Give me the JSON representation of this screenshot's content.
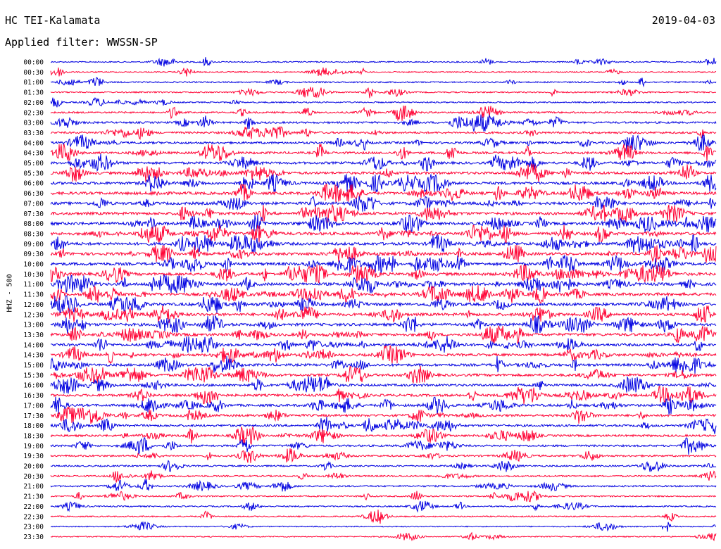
{
  "header": {
    "station": "HC TEI-Kalamata",
    "filter": "Applied filter: WWSSN-SP",
    "date": "2019-04-03",
    "channel_label": "HHZ - 500"
  },
  "colors": {
    "even_row": "#0000e0",
    "odd_row": "#ff0033",
    "text": "#000000"
  },
  "chart_data": {
    "type": "line",
    "title": "HC TEI-Kalamata",
    "subtitle": "Applied filter: WWSSN-SP",
    "ylabel": "HHZ - 500",
    "row_labels": [
      "00:00",
      "00:30",
      "01:00",
      "01:30",
      "02:00",
      "02:30",
      "03:00",
      "03:30",
      "04:00",
      "04:30",
      "05:00",
      "05:30",
      "06:00",
      "06:30",
      "07:00",
      "07:30",
      "08:00",
      "08:30",
      "09:00",
      "09:30",
      "10:00",
      "10:30",
      "11:00",
      "11:30",
      "12:00",
      "12:30",
      "13:00",
      "13:30",
      "14:00",
      "14:30",
      "15:00",
      "15:30",
      "16:00",
      "16:30",
      "17:00",
      "17:30",
      "18:00",
      "18:30",
      "19:00",
      "19:30",
      "20:00",
      "20:30",
      "21:00",
      "21:30",
      "22:00",
      "22:30",
      "23:00",
      "23:30"
    ],
    "row_minutes": 30,
    "activity_level": [
      0.15,
      0.15,
      0.2,
      0.2,
      0.2,
      0.35,
      0.45,
      0.5,
      0.55,
      0.6,
      0.65,
      0.7,
      0.75,
      0.8,
      0.8,
      0.8,
      0.85,
      0.85,
      0.85,
      0.85,
      0.85,
      0.85,
      0.85,
      0.85,
      0.85,
      0.8,
      0.8,
      0.8,
      0.75,
      0.7,
      0.7,
      0.7,
      0.65,
      0.65,
      0.65,
      0.6,
      0.55,
      0.5,
      0.45,
      0.4,
      0.3,
      0.3,
      0.3,
      0.25,
      0.2,
      0.15,
      0.1,
      0.1
    ],
    "grid": false,
    "legend": "none"
  }
}
